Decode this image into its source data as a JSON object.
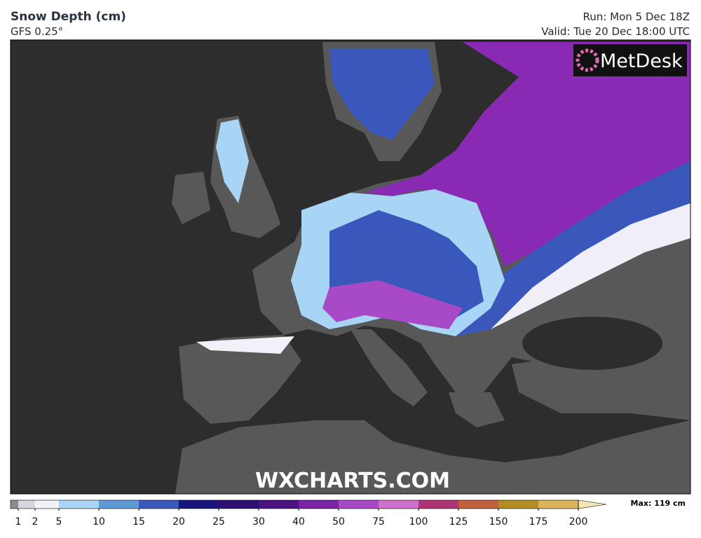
{
  "header": {
    "title": "Snow Depth (cm)",
    "model": "GFS 0.25°",
    "run": "Run: Mon 5 Dec 18Z",
    "valid": "Valid: Tue 20 Dec 18:00 UTC"
  },
  "map": {
    "logo": "MetDesk",
    "watermark": "WXCHARTS.COM"
  },
  "legend": {
    "ticks": [
      1,
      2,
      5,
      10,
      15,
      20,
      25,
      30,
      40,
      50,
      75,
      100,
      125,
      150,
      175,
      200
    ],
    "colors": [
      "#8c8c8c",
      "#d6d6de",
      "#f2f0f8",
      "#a8d4f6",
      "#5e9ad6",
      "#3a58bc",
      "#17147e",
      "#2c0f6e",
      "#4c1280",
      "#7a22a8",
      "#a84ac8",
      "#d070cc",
      "#b03478",
      "#c0603c",
      "#b48c24",
      "#dcb45c"
    ],
    "arrow_color": "#f6e6b4",
    "max": "Max: 119 cm"
  }
}
